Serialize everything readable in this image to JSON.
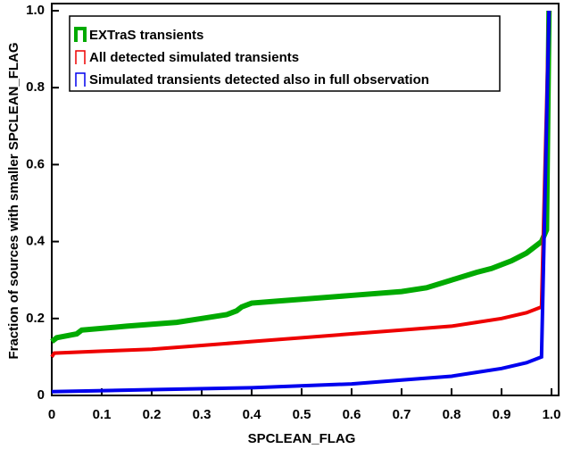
{
  "chart_data": {
    "type": "line",
    "xlabel": "SPCLEAN_FLAG",
    "ylabel": "Fraction of sources with smaller SPCLEAN_FLAG",
    "xlim": [
      0,
      1
    ],
    "ylim": [
      0,
      1
    ],
    "xticks": [
      0,
      0.1,
      0.2,
      0.3,
      0.4,
      0.5,
      0.6,
      0.7,
      0.8,
      0.9,
      {
        "value": 1,
        "label": "1.0"
      }
    ],
    "yticks": [
      0,
      0.2,
      0.4,
      0.6,
      0.8,
      {
        "value": 1,
        "label": "1.0"
      }
    ],
    "legend": "upper left",
    "series": [
      {
        "name": "EXTraS transients",
        "color": "#00aa00",
        "x": [
          0,
          0.01,
          0.05,
          0.06,
          0.15,
          0.25,
          0.3,
          0.35,
          0.37,
          0.38,
          0.4,
          0.45,
          0.5,
          0.6,
          0.7,
          0.75,
          0.8,
          0.85,
          0.88,
          0.92,
          0.95,
          0.98,
          0.99,
          0.995
        ],
        "values": [
          0.14,
          0.15,
          0.16,
          0.17,
          0.18,
          0.19,
          0.2,
          0.21,
          0.22,
          0.23,
          0.24,
          0.245,
          0.25,
          0.26,
          0.27,
          0.28,
          0.3,
          0.32,
          0.33,
          0.35,
          0.37,
          0.4,
          0.43,
          1.0
        ]
      },
      {
        "name": "All detected simulated transients",
        "color": "#ee0000",
        "x": [
          0,
          0.005,
          0.1,
          0.2,
          0.3,
          0.4,
          0.5,
          0.6,
          0.7,
          0.8,
          0.85,
          0.9,
          0.95,
          0.98,
          0.995
        ],
        "values": [
          0.1,
          0.11,
          0.115,
          0.12,
          0.13,
          0.14,
          0.15,
          0.16,
          0.17,
          0.18,
          0.19,
          0.2,
          0.215,
          0.23,
          1.0
        ]
      },
      {
        "name": "Simulated transients detected also in full observation",
        "color": "#0000ee",
        "x": [
          0,
          0.2,
          0.4,
          0.6,
          0.7,
          0.8,
          0.85,
          0.9,
          0.95,
          0.98,
          0.995
        ],
        "values": [
          0.01,
          0.015,
          0.02,
          0.03,
          0.04,
          0.05,
          0.06,
          0.07,
          0.085,
          0.1,
          1.0
        ]
      }
    ]
  }
}
